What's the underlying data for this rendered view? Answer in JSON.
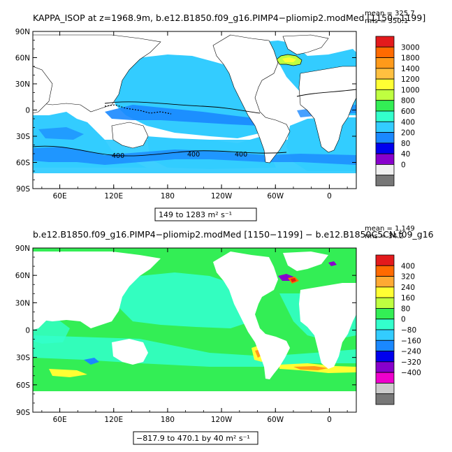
{
  "panels": [
    {
      "title": "KAPPA_ISOP at z=1968.9m, b.e12.B1850.f09_g16.PIMP4−pliomip2.modMed [1150−1199]",
      "stats": {
        "mean": "mean = 325.7",
        "rms": "rms = 350.1"
      },
      "range_label": "149 to 1283 m² s⁻¹",
      "contour_labels": [
        "400",
        "400",
        "400"
      ],
      "colorbar": {
        "labels": [
          "3000",
          "1800",
          "1400",
          "1200",
          "1000",
          "800",
          "600",
          "400",
          "200",
          "80",
          "40",
          "0"
        ],
        "colors": [
          "#e31a1c",
          "#ff6a00",
          "#ff9a1a",
          "#ffc040",
          "#ffff33",
          "#bfff40",
          "#33ee55",
          "#33ffcc",
          "#33ccff",
          "#1a88ff",
          "#0000ee",
          "#8800cc",
          "#f0f0f0",
          "#777777"
        ]
      },
      "ocean_colors": {
        "base": "#33ccff",
        "deep": "#1a88ff",
        "mid": "#33ddff",
        "cool": "#33ffcc"
      }
    },
    {
      "title": "b.e12.B1850.f09_g16.PIMP4−pliomip2.modMed [1150−1199] − b.e12.B1850C5CN.f09_g16",
      "stats": {
        "mean": "mean = 1.149",
        "rms": "rms = 34.2"
      },
      "range_label": "−817.9 to 470.1 by 40 m² s⁻¹",
      "colorbar": {
        "labels": [
          "400",
          "320",
          "240",
          "160",
          "80",
          "0",
          "−80",
          "−160",
          "−240",
          "−320",
          "−400"
        ],
        "colors": [
          "#e31a1c",
          "#ff6a00",
          "#ffaa33",
          "#ffff33",
          "#bfff40",
          "#33ee55",
          "#33ffcc",
          "#33ccff",
          "#1a88ff",
          "#0000ee",
          "#8800cc",
          "#ee00cc",
          "#cccccc",
          "#777777"
        ]
      },
      "ocean_colors": {
        "base": "#33ee55",
        "alt": "#33ffcc",
        "warm": "#ffff33",
        "hot": "#ff9a1a",
        "neg": "#1a88ff"
      }
    }
  ],
  "axes": {
    "y_tick_labels": [
      "90N",
      "60N",
      "30N",
      "0",
      "30S",
      "60S",
      "90S"
    ],
    "x_tick_labels": [
      "60E",
      "120E",
      "180",
      "120W",
      "60W",
      "0"
    ]
  },
  "chart_data": [
    {
      "type": "heatmap",
      "title": "KAPPA_ISOP at z=1968.9m, b.e12.B1850.f09_g16.PIMP4−pliomip2.modMed [1150−1199]",
      "xlabel": "",
      "ylabel": "",
      "x_ticks": [
        "60E",
        "120E",
        "180",
        "120W",
        "60W",
        "0"
      ],
      "y_ticks": [
        "90N",
        "60N",
        "30N",
        "0",
        "30S",
        "60S",
        "90S"
      ],
      "ylim": [
        -90,
        90
      ],
      "levels": [
        0,
        40,
        80,
        200,
        400,
        600,
        800,
        1000,
        1200,
        1400,
        1800,
        3000
      ],
      "mean": 325.7,
      "rms": 350.1,
      "min": 149,
      "max": 1283,
      "units": "m² s⁻¹",
      "contour_value": 400
    },
    {
      "type": "heatmap",
      "title": "b.e12.B1850.f09_g16.PIMP4−pliomip2.modMed [1150−1199] − b.e12.B1850C5CN.f09_g16",
      "xlabel": "",
      "ylabel": "",
      "x_ticks": [
        "60E",
        "120E",
        "180",
        "120W",
        "60W",
        "0"
      ],
      "y_ticks": [
        "90N",
        "60N",
        "30N",
        "0",
        "30S",
        "60S",
        "90S"
      ],
      "ylim": [
        -90,
        90
      ],
      "levels": [
        -400,
        -320,
        -240,
        -160,
        -80,
        0,
        80,
        160,
        240,
        320,
        400
      ],
      "mean": 1.149,
      "rms": 34.2,
      "min": -817.9,
      "max": 470.1,
      "interval": 40,
      "units": "m² s⁻¹"
    }
  ]
}
